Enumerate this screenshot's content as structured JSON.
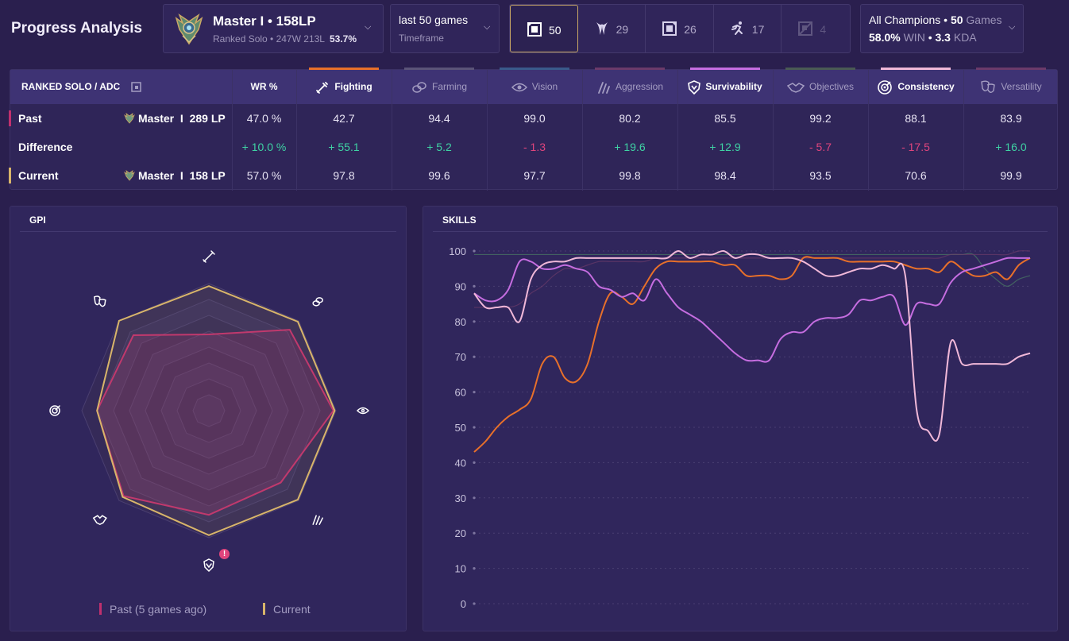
{
  "page": {
    "title": "Progress Analysis"
  },
  "rank": {
    "title": "Master I • 158LP",
    "sub": "Ranked Solo • 247W 213L",
    "winrate": "53.7%"
  },
  "timeframe": {
    "value": "last 50 games",
    "label": "Timeframe"
  },
  "roles": [
    {
      "name": "top",
      "count": "50",
      "active": true
    },
    {
      "name": "jungle",
      "count": "29",
      "active": false
    },
    {
      "name": "mid",
      "count": "26",
      "active": false
    },
    {
      "name": "adc",
      "count": "17",
      "active": false
    },
    {
      "name": "support",
      "count": "4",
      "active": false
    }
  ],
  "champions": {
    "label": "All Champions",
    "games_count": "50",
    "games_label": "Games",
    "win": "58.0%",
    "win_label": "WIN",
    "kda": "3.3",
    "kda_label": "KDA",
    "sep": "•"
  },
  "table": {
    "queue_label": "RANKED SOLO / ADC",
    "wr_header": "WR %",
    "categories": [
      {
        "key": "fighting",
        "label": "Fighting",
        "bright": true,
        "accent": "#e8702a"
      },
      {
        "key": "farming",
        "label": "Farming",
        "bright": false,
        "accent": "#5b5478"
      },
      {
        "key": "vision",
        "label": "Vision",
        "bright": false,
        "accent": "#3a5a8a"
      },
      {
        "key": "aggression",
        "label": "Aggression",
        "bright": false,
        "accent": "#6b3a6a"
      },
      {
        "key": "survivability",
        "label": "Survivability",
        "bright": true,
        "accent": "#c56de0"
      },
      {
        "key": "objectives",
        "label": "Objectives",
        "bright": false,
        "accent": "#4a5a54"
      },
      {
        "key": "consistency",
        "label": "Consistency",
        "bright": true,
        "accent": "#f0b8d8"
      },
      {
        "key": "versatility",
        "label": "Versatility",
        "bright": false,
        "accent": "#6b3a6a"
      }
    ],
    "rows": [
      {
        "label": "Past",
        "rank": "Master  I  289 LP",
        "wr": "47.0 %",
        "values": [
          "42.7",
          "94.4",
          "99.0",
          "80.2",
          "85.5",
          "99.2",
          "88.1",
          "83.9"
        ],
        "mark": "#c0306e"
      },
      {
        "label": "Difference",
        "rank": "",
        "wr": "+ 10.0 %",
        "values": [
          "+ 55.1",
          "+ 5.2",
          "- 1.3",
          "+ 19.6",
          "+ 12.9",
          "- 5.7",
          "- 17.5",
          "+ 16.0"
        ],
        "mark": ""
      },
      {
        "label": "Current",
        "rank": "Master  I  158 LP",
        "wr": "57.0 %",
        "values": [
          "97.8",
          "99.6",
          "97.7",
          "99.8",
          "98.4",
          "93.5",
          "70.6",
          "99.9"
        ],
        "mark": "#d8b56a"
      }
    ]
  },
  "gpi": {
    "title": "GPI",
    "alert": "!",
    "legend_past": "Past (5 games ago)",
    "legend_current": "Current",
    "axes": [
      "fighting",
      "farming",
      "vision",
      "aggression",
      "survivability",
      "objectives",
      "consistency",
      "versatility"
    ],
    "past": [
      60,
      90,
      98,
      80,
      82,
      95,
      88,
      84
    ],
    "current": [
      98,
      99,
      99,
      99,
      98,
      96,
      88,
      100
    ],
    "colors": {
      "past": "#c0306e",
      "current": "#d8b56a"
    }
  },
  "chart_data": {
    "type": "line",
    "title": "SKILLS",
    "ylim": [
      0,
      100
    ],
    "yticks": [
      0,
      10,
      20,
      30,
      40,
      50,
      60,
      70,
      80,
      90,
      100
    ],
    "x": [
      1,
      2,
      3,
      4,
      5,
      6,
      7,
      8,
      9,
      10,
      11,
      12,
      13,
      14,
      15,
      16,
      17,
      18,
      19,
      20,
      21,
      22,
      23,
      24,
      25,
      26,
      27,
      28,
      29,
      30,
      31,
      32,
      33,
      34,
      35,
      36,
      37,
      38,
      39,
      40,
      41,
      42,
      43,
      44,
      45,
      46,
      47,
      48,
      49,
      50
    ],
    "series": [
      {
        "name": "Fighting",
        "color": "#e8702a",
        "values": [
          43,
          46,
          50,
          53,
          55,
          58,
          68,
          70,
          64,
          63,
          68,
          80,
          88,
          87,
          85,
          90,
          95,
          97,
          97,
          97,
          97,
          97,
          96,
          96,
          93,
          93,
          93,
          92,
          93,
          98,
          98,
          98,
          98,
          97,
          97,
          97,
          97,
          97,
          96,
          95,
          95,
          94,
          97,
          95,
          93,
          93,
          94,
          92,
          96,
          98
        ]
      },
      {
        "name": "Survivability",
        "color": "#c56de0",
        "values": [
          88,
          86,
          86,
          89,
          97,
          97,
          95,
          95,
          96,
          95,
          94,
          90,
          89,
          87,
          88,
          86,
          92,
          88,
          84,
          82,
          80,
          77,
          74,
          71,
          69,
          69,
          69,
          75,
          77,
          77,
          80,
          81,
          81,
          82,
          86,
          86,
          87,
          87,
          79,
          85,
          85,
          85,
          91,
          94,
          95,
          96,
          97,
          98,
          98,
          98
        ]
      },
      {
        "name": "Consistency",
        "color": "#f0b8d8",
        "values": [
          88,
          84,
          84,
          84,
          80,
          92,
          96,
          97,
          97,
          98,
          98,
          98,
          98,
          98,
          98,
          98,
          98,
          98,
          100,
          98,
          99,
          99,
          100,
          98,
          99,
          99,
          98,
          98,
          98,
          97,
          95,
          93,
          93,
          94,
          95,
          95,
          96,
          95,
          93,
          55,
          49,
          48,
          74,
          68,
          68,
          68,
          68,
          68,
          70,
          71
        ]
      },
      {
        "name": "Objectives",
        "color": "#4a7a64",
        "values": [
          99,
          99,
          99,
          99,
          99,
          99,
          99,
          99,
          99,
          99,
          99,
          99,
          99,
          99,
          99,
          99,
          99,
          99,
          99,
          99,
          99,
          99,
          99,
          99,
          99,
          99,
          99,
          99,
          99,
          99,
          99,
          99,
          99,
          99,
          99,
          99,
          99,
          99,
          99,
          99,
          99,
          99,
          99,
          99,
          99,
          95,
          92,
          90,
          92,
          93
        ]
      },
      {
        "name": "Versatility",
        "color": "#6b3a6a",
        "values": [
          84,
          84,
          84,
          84,
          85,
          88,
          90,
          93,
          95,
          95,
          96,
          97,
          97,
          97,
          97,
          97,
          98,
          98,
          98,
          98,
          98,
          98,
          98,
          98,
          98,
          98,
          98,
          98,
          98,
          98,
          98,
          98,
          98,
          98,
          98,
          98,
          98,
          98,
          98,
          98,
          98,
          98,
          99,
          99,
          99,
          99,
          99,
          99,
          100,
          100
        ]
      }
    ]
  }
}
